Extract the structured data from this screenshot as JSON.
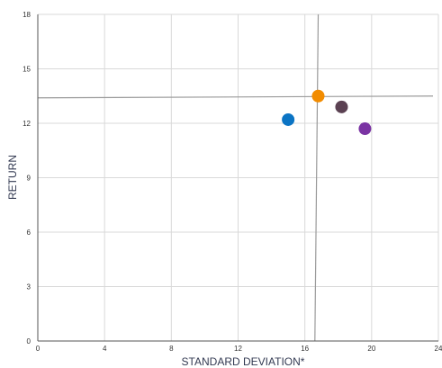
{
  "chart_data": {
    "type": "scatter",
    "title": "",
    "xlabel": "STANDARD DEVIATION*",
    "ylabel": "RETURN",
    "xlim": [
      0,
      24
    ],
    "ylim": [
      0,
      18
    ],
    "x_ticks": [
      0,
      4,
      8,
      12,
      16,
      20,
      24
    ],
    "y_ticks": [
      0,
      3,
      6,
      9,
      12,
      15,
      18
    ],
    "grid": true,
    "legend": "none",
    "points": [
      {
        "x": 15.0,
        "y": 12.2,
        "color": "#0b74c4"
      },
      {
        "x": 16.8,
        "y": 13.5,
        "color": "#f28c00"
      },
      {
        "x": 18.2,
        "y": 12.9,
        "color": "#5b4152"
      },
      {
        "x": 19.6,
        "y": 11.7,
        "color": "#7a33a3"
      }
    ],
    "reference_lines": {
      "vertical": {
        "x1": 16.8,
        "x2": 16.6
      },
      "horizontal": {
        "y1": 13.4,
        "y2": 13.5
      },
      "color": "#9a9a9a"
    },
    "colors": {
      "grid": "#d9d9d9",
      "axis": "#555555",
      "tick_text": "#333333",
      "axis_title": "#333a52"
    }
  }
}
